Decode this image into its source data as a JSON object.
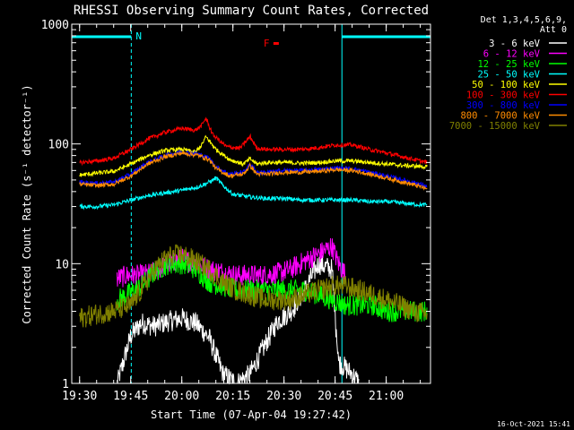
{
  "chart_data": {
    "type": "line",
    "title": "RHESSI Observing Summary Count Rates, Corrected",
    "xlabel": "Start Time (07-Apr-04 19:27:42)",
    "ylabel": "Corrected Count Rate (s⁻¹ detector⁻¹)",
    "yscale": "log",
    "ylim": [
      1,
      1000
    ],
    "xlim": [
      "19:27:42",
      "21:13:00"
    ],
    "x_ticks": [
      "19:30",
      "19:45",
      "20:00",
      "20:15",
      "20:30",
      "20:45",
      "21:00"
    ],
    "y_ticks": [
      "1",
      "10",
      "100",
      "1000"
    ],
    "legend_header": [
      "Det 1,3,4,5,6,9,",
      "Att 0"
    ],
    "legend_position": "right",
    "timestamp": "16-Oct-2021 15:41",
    "annotations": [
      {
        "text": "N",
        "color": "#00ffff",
        "time": "19:46:30",
        "description": "night segment bar"
      },
      {
        "text": "F",
        "color": "#ff0000",
        "time": "20:24:00",
        "description": "flare flag"
      }
    ],
    "night_intervals": [
      [
        "19:27:42",
        "19:45:10"
      ],
      [
        "20:47:00",
        "21:13:00"
      ]
    ],
    "series": [
      {
        "name": "3 - 6 keV",
        "color": "#ffffff",
        "times": [
          "19:41",
          "19:45",
          "19:48",
          "19:52",
          "19:56",
          "20:00",
          "20:04",
          "20:08",
          "20:12",
          "20:16",
          "20:20",
          "20:24",
          "20:28",
          "20:32",
          "20:36",
          "20:40",
          "20:44",
          "20:46",
          "20:50",
          "20:52"
        ],
        "values": [
          1,
          2.5,
          3.2,
          3.0,
          3.3,
          3.5,
          3.2,
          2.4,
          1.2,
          1.0,
          1.2,
          2.0,
          3.3,
          4.0,
          6.0,
          10.0,
          9.0,
          1.5,
          1.2,
          1.0
        ]
      },
      {
        "name": "6 - 12 keV",
        "color": "#ff00ff",
        "times": [
          "19:41",
          "19:44",
          "19:48",
          "19:52",
          "19:56",
          "20:00",
          "20:04",
          "20:08",
          "20:12",
          "20:16",
          "20:20",
          "20:24",
          "20:28",
          "20:32",
          "20:36",
          "20:40",
          "20:44",
          "20:46",
          "20:48"
        ],
        "values": [
          7.5,
          8.0,
          8.0,
          8.5,
          10.0,
          11.0,
          10.0,
          9.0,
          8.5,
          8.0,
          8.0,
          8.0,
          8.3,
          9.0,
          10.5,
          12.0,
          14.0,
          10.0,
          8.0
        ]
      },
      {
        "name": "12 - 25 keV",
        "color": "#00ff00",
        "times": [
          "19:41",
          "19:44",
          "19:48",
          "19:52",
          "19:56",
          "20:00",
          "20:04",
          "20:08",
          "20:12",
          "20:16",
          "20:20",
          "20:24",
          "20:28",
          "20:32",
          "20:36",
          "20:40",
          "20:44",
          "20:48",
          "20:52",
          "20:56",
          "21:00",
          "21:04",
          "21:08",
          "21:12"
        ],
        "values": [
          5.0,
          5.5,
          6.5,
          8.5,
          10.0,
          10.0,
          9.0,
          7.0,
          6.5,
          6.0,
          6.0,
          6.0,
          6.0,
          6.0,
          6.0,
          5.5,
          5.0,
          4.5,
          4.5,
          4.5,
          4.0,
          4.0,
          4.0,
          4.0
        ]
      },
      {
        "name": "25 - 50 keV",
        "color": "#00ffff",
        "times": [
          "19:30",
          "19:35",
          "19:40",
          "19:45",
          "19:50",
          "19:55",
          "20:00",
          "20:05",
          "20:08",
          "20:10",
          "20:12",
          "20:15",
          "20:20",
          "20:25",
          "20:30",
          "20:35",
          "20:40",
          "20:45",
          "20:50",
          "20:55",
          "21:00",
          "21:05",
          "21:10",
          "21:12"
        ],
        "values": [
          30,
          30,
          31,
          34,
          37,
          39,
          41,
          44,
          48,
          52,
          45,
          38,
          36,
          35,
          35,
          34,
          34,
          34,
          34,
          33,
          33,
          32,
          31,
          31
        ]
      },
      {
        "name": "50 - 100 keV",
        "color": "#ffff00",
        "times": [
          "19:30",
          "19:35",
          "19:40",
          "19:45",
          "19:50",
          "19:55",
          "20:00",
          "20:04",
          "20:06",
          "20:07",
          "20:10",
          "20:14",
          "20:18",
          "20:20",
          "20:22",
          "20:25",
          "20:30",
          "20:35",
          "20:40",
          "20:45",
          "20:50",
          "20:55",
          "21:00",
          "21:05",
          "21:10",
          "21:12"
        ],
        "values": [
          55,
          57,
          59,
          68,
          80,
          88,
          90,
          85,
          100,
          115,
          90,
          74,
          68,
          75,
          68,
          70,
          70,
          69,
          70,
          72,
          72,
          70,
          68,
          66,
          65,
          64
        ]
      },
      {
        "name": "100 - 300 keV",
        "color": "#ff0000",
        "times": [
          "19:30",
          "19:35",
          "19:40",
          "19:45",
          "19:50",
          "19:55",
          "20:00",
          "20:04",
          "20:06",
          "20:07",
          "20:09",
          "20:13",
          "20:17",
          "20:20",
          "20:22",
          "20:25",
          "20:30",
          "20:35",
          "20:40",
          "20:45",
          "20:50",
          "20:55",
          "21:00",
          "21:05",
          "21:10",
          "21:12"
        ],
        "values": [
          70,
          72,
          76,
          90,
          110,
          125,
          135,
          130,
          145,
          165,
          120,
          95,
          92,
          115,
          92,
          90,
          90,
          90,
          93,
          98,
          98,
          90,
          84,
          78,
          72,
          70
        ]
      },
      {
        "name": "300 - 800 keV",
        "color": "#0000ff",
        "times": [
          "19:30",
          "19:35",
          "19:40",
          "19:45",
          "19:50",
          "19:55",
          "20:00",
          "20:05",
          "20:08",
          "20:10",
          "20:14",
          "20:18",
          "20:20",
          "20:22",
          "20:25",
          "20:30",
          "20:35",
          "20:40",
          "20:45",
          "20:50",
          "20:55",
          "21:00",
          "21:05",
          "21:10",
          "21:12"
        ],
        "values": [
          48,
          47,
          48,
          56,
          70,
          80,
          86,
          82,
          76,
          64,
          56,
          58,
          68,
          58,
          58,
          60,
          60,
          61,
          63,
          62,
          58,
          54,
          50,
          46,
          44
        ]
      },
      {
        "name": "800 - 7000 keV",
        "color": "#ff8c00",
        "times": [
          "19:30",
          "19:35",
          "19:40",
          "19:45",
          "19:50",
          "19:55",
          "20:00",
          "20:05",
          "20:08",
          "20:10",
          "20:14",
          "20:18",
          "20:20",
          "20:22",
          "20:25",
          "20:30",
          "20:35",
          "20:40",
          "20:45",
          "20:50",
          "20:55",
          "21:00",
          "21:05",
          "21:10",
          "21:12"
        ],
        "values": [
          46,
          45,
          46,
          54,
          68,
          78,
          84,
          80,
          74,
          62,
          54,
          56,
          66,
          56,
          56,
          58,
          58,
          59,
          61,
          60,
          56,
          52,
          48,
          44,
          42
        ]
      },
      {
        "name": "7000 - 15000 keV",
        "color": "#808000",
        "times": [
          "19:30",
          "19:35",
          "19:40",
          "19:45",
          "19:48",
          "19:52",
          "19:56",
          "20:00",
          "20:04",
          "20:08",
          "20:12",
          "20:16",
          "20:20",
          "20:24",
          "20:28",
          "20:32",
          "20:36",
          "20:40",
          "20:44",
          "20:48",
          "20:52",
          "20:56",
          "21:00",
          "21:04",
          "21:08",
          "21:12"
        ],
        "values": [
          3.5,
          3.8,
          4.0,
          4.5,
          6.0,
          9.0,
          11.5,
          12.0,
          10.5,
          9.0,
          7.0,
          6.0,
          5.5,
          5.0,
          5.0,
          5.0,
          5.5,
          6.0,
          6.5,
          6.5,
          6.0,
          5.5,
          5.0,
          4.5,
          4.0,
          3.8
        ]
      }
    ]
  }
}
